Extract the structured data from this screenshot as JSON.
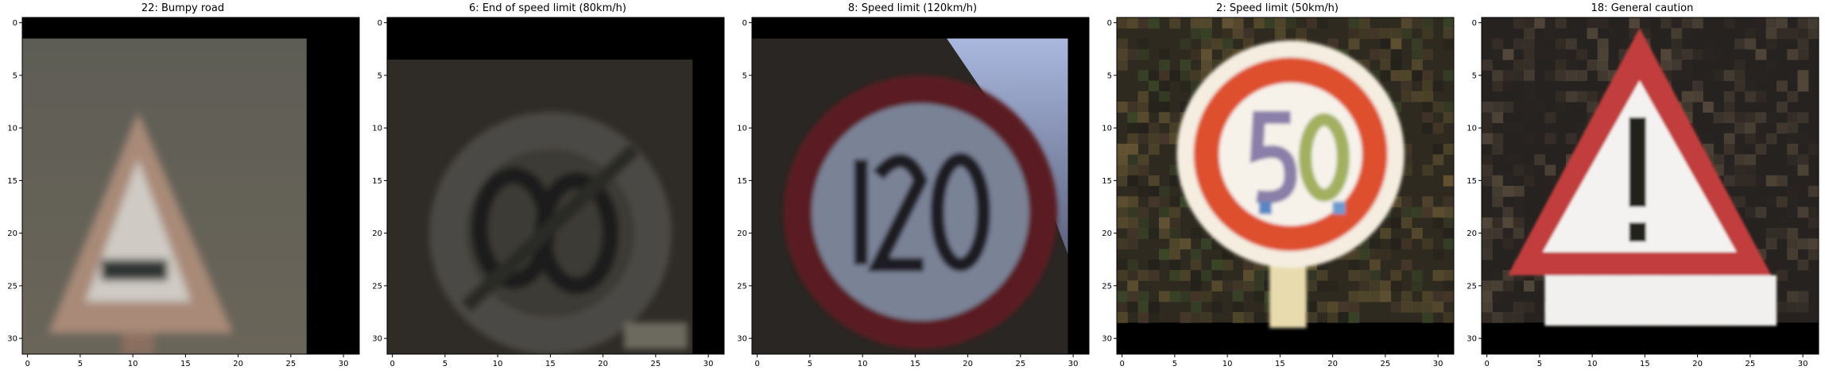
{
  "panels": [
    {
      "title": "22: Bumpy road",
      "x_ticks": [
        "0",
        "5",
        "10",
        "15",
        "20",
        "25",
        "30"
      ],
      "y_ticks": [
        "0",
        "5",
        "10",
        "15",
        "20",
        "25",
        "30"
      ],
      "scene": "bumpy-road-sign",
      "content_extent": {
        "x_max": 26.5,
        "y_min": 1.5
      }
    },
    {
      "title": "6: End of speed limit (80km/h)",
      "x_ticks": [
        "0",
        "5",
        "10",
        "15",
        "20",
        "25",
        "30"
      ],
      "y_ticks": [
        "0",
        "5",
        "10",
        "15",
        "20",
        "25",
        "30"
      ],
      "scene": "end-speed-limit-80-sign",
      "content_extent": {
        "x_max": 28.5,
        "y_min": 3.5
      }
    },
    {
      "title": "8: Speed limit (120km/h)",
      "x_ticks": [
        "0",
        "5",
        "10",
        "15",
        "20",
        "25",
        "30"
      ],
      "y_ticks": [
        "0",
        "5",
        "10",
        "15",
        "20",
        "25",
        "30"
      ],
      "scene": "speed-limit-120-sign",
      "content_extent": {
        "x_max": 29.5,
        "y_min": 1.5
      }
    },
    {
      "title": "2: Speed limit (50km/h)",
      "x_ticks": [
        "0",
        "5",
        "10",
        "15",
        "20",
        "25",
        "30"
      ],
      "y_ticks": [
        "0",
        "5",
        "10",
        "15",
        "20",
        "25",
        "30"
      ],
      "scene": "speed-limit-50-sign",
      "content_extent": {
        "x_max": 31.5,
        "y_max": 28.5
      }
    },
    {
      "title": "18: General caution",
      "x_ticks": [
        "0",
        "5",
        "10",
        "15",
        "20",
        "25",
        "30"
      ],
      "y_ticks": [
        "0",
        "5",
        "10",
        "15",
        "20",
        "25",
        "30"
      ],
      "scene": "general-caution-sign",
      "content_extent": {
        "x_max": 31.5,
        "y_max": 28.5
      }
    }
  ],
  "colors": {
    "axis": "#000000",
    "padding_black": "#000000",
    "sign_red": "#b23a34",
    "sign_white": "#f3f1ee"
  }
}
